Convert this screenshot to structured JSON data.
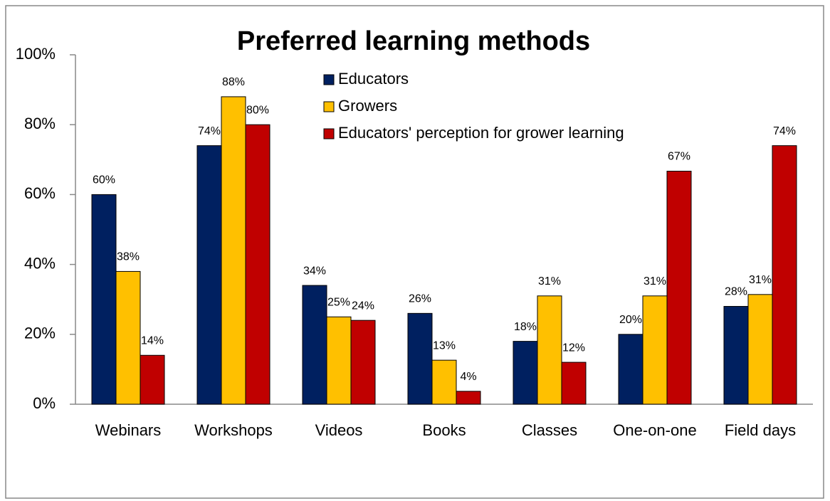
{
  "chart_data": {
    "type": "bar",
    "title": "Preferred  learning  methods",
    "categories": [
      "Webinars",
      "Workshops",
      "Videos",
      "Books",
      "Classes",
      "One-on-one",
      "Field days"
    ],
    "series": [
      {
        "name": "Educators",
        "color": "#002060",
        "values": [
          60,
          74,
          34,
          26,
          18,
          20,
          28
        ],
        "value_labels": [
          "60%",
          "74%",
          "34%",
          "26%",
          "18%",
          "20%",
          "28%"
        ]
      },
      {
        "name": "Growers",
        "color": "#FFC000",
        "values": [
          38,
          88,
          25,
          12.6,
          31,
          31,
          31.4
        ],
        "value_labels": [
          "38%",
          "88%",
          "25%",
          "13%",
          "31%",
          "31%",
          "31%"
        ]
      },
      {
        "name": "Educators' perception for grower learning",
        "color": "#C00000",
        "values": [
          14,
          80,
          24,
          3.7,
          12,
          66.7,
          74
        ],
        "value_labels": [
          "14%",
          "80%",
          "24%",
          "4%",
          "12%",
          "67%",
          "74%"
        ]
      }
    ],
    "ylim": [
      0,
      100
    ],
    "yticks": [
      {
        "value": 0,
        "label": "0%"
      },
      {
        "value": 20,
        "label": "20%"
      },
      {
        "value": 40,
        "label": "40%"
      },
      {
        "value": 60,
        "label": "60%"
      },
      {
        "value": 80,
        "label": "80%"
      },
      {
        "value": 100,
        "label": "100%"
      }
    ],
    "grid": false
  }
}
